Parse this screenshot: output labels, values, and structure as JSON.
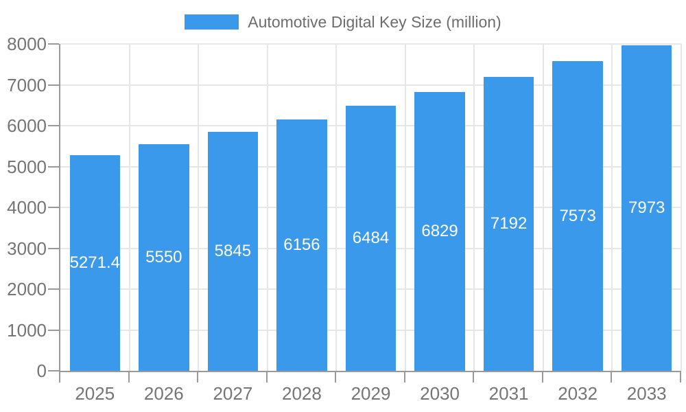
{
  "legend": {
    "label": "Automotive Digital Key Size (million)"
  },
  "chart_data": {
    "type": "bar",
    "title": "Automotive Digital Key Size (million)",
    "series_name": "Automotive Digital Key Size (million)",
    "categories": [
      "2025",
      "2026",
      "2027",
      "2028",
      "2029",
      "2030",
      "2031",
      "2032",
      "2033"
    ],
    "values": [
      5271.4,
      5550,
      5845,
      6156,
      6484,
      6829,
      7192,
      7573,
      7973
    ],
    "value_labels": [
      "5271.4",
      "5550",
      "5845",
      "6156",
      "6484",
      "6829",
      "7192",
      "7573",
      "7973"
    ],
    "xlabel": "",
    "ylabel": "",
    "ylim": [
      0,
      8000
    ],
    "y_ticks": [
      0,
      1000,
      2000,
      3000,
      4000,
      5000,
      6000,
      7000,
      8000
    ],
    "grid": true,
    "legend_position": "top"
  },
  "colors": {
    "bar": "#3B99EC",
    "grid": "#E6E6E6",
    "axis": "#999999",
    "tick_label": "#757575",
    "legend_text": "#6D6D6D",
    "bar_label": "#FFFFFF",
    "background": "#FFFFFF"
  }
}
